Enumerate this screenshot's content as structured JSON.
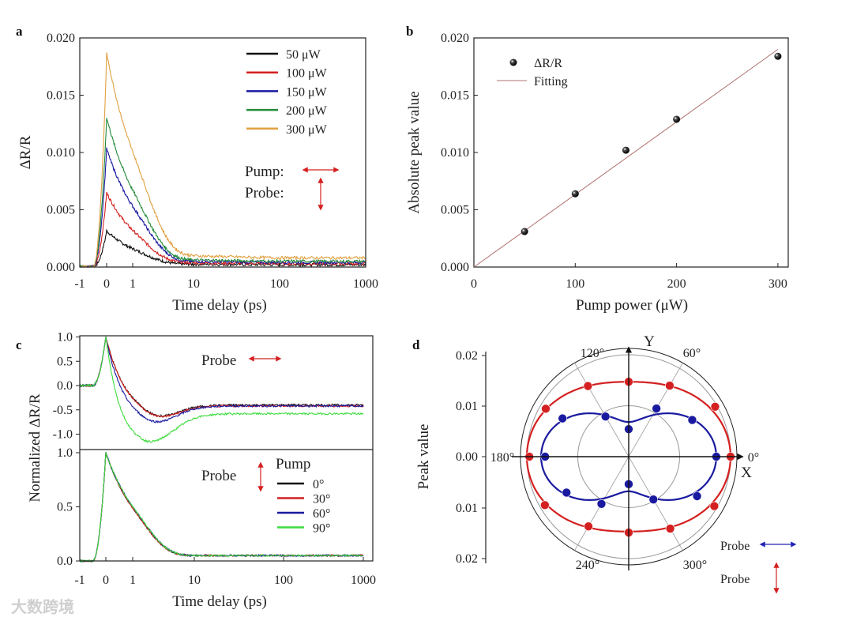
{
  "watermark": "大数跨境",
  "colors": {
    "black": "#111111",
    "red": "#d42020",
    "blue": "#1a1aa0",
    "green": "#228b3a",
    "orange": "#e0a040",
    "lime": "#3ddc3d",
    "arrow": "#d42020",
    "probe_blue": "#2323b8"
  },
  "chart_data": [
    {
      "panel": "a",
      "type": "line",
      "xlabel": "Time delay (ps)",
      "ylabel": "ΔR/R",
      "xscale": "linear -1..1, log 1..1000",
      "xticks": [
        "-1",
        "0",
        "1",
        "10",
        "100",
        "1000"
      ],
      "yticks": [
        "0.000",
        "0.005",
        "0.010",
        "0.015",
        "0.020"
      ],
      "ylim": [
        0,
        0.02
      ],
      "series": [
        {
          "name": "50 μW",
          "color": "#111111",
          "peak": 0.0031,
          "tail": 0.0002,
          "tau": 1.3
        },
        {
          "name": "100 μW",
          "color": "#d42020",
          "peak": 0.0064,
          "tail": 0.0003,
          "tau": 1.3
        },
        {
          "name": "150 μW",
          "color": "#1a1aa0",
          "peak": 0.0102,
          "tail": 0.0004,
          "tau": 1.4
        },
        {
          "name": "200 μW",
          "color": "#228b3a",
          "peak": 0.0129,
          "tail": 0.0005,
          "tau": 1.4
        },
        {
          "name": "300 μW",
          "color": "#e0a040",
          "peak": 0.0184,
          "tail": 0.0008,
          "tau": 1.5
        }
      ],
      "annotations": {
        "pump": "Pump:",
        "probe": "Probe:"
      }
    },
    {
      "panel": "b",
      "type": "scatter",
      "xlabel": "Pump power (μW)",
      "ylabel": "Absolute peak value",
      "xticks": [
        "0",
        "100",
        "200",
        "300"
      ],
      "yticks": [
        "0.000",
        "0.005",
        "0.010",
        "0.015",
        "0.020"
      ],
      "xlim": [
        0,
        310
      ],
      "ylim": [
        0,
        0.02
      ],
      "x": [
        50,
        100,
        150,
        200,
        300
      ],
      "values": [
        0.0031,
        0.0064,
        0.0102,
        0.0129,
        0.0184
      ],
      "fit": {
        "x": [
          0,
          300
        ],
        "y": [
          0,
          0.019
        ]
      },
      "legend": {
        "points": "ΔR/R",
        "line": "Fitting"
      }
    },
    {
      "panel": "c",
      "type": "line",
      "xlabel": "Time delay (ps)",
      "ylabel": "Normalized ΔR/R",
      "xticks": [
        "-1",
        "0",
        "1",
        "10",
        "100",
        "1000"
      ],
      "top": {
        "yticks": [
          "1.0",
          "0.5",
          "0.0",
          "-0.5",
          "-1.0"
        ],
        "ylim": [
          -1.2,
          1.0
        ],
        "annotation": "Probe",
        "series": [
          {
            "name": "0°",
            "color": "#111111",
            "c": -0.4,
            "b": 0.6,
            "tau1": 0.85,
            "tau2": 4
          },
          {
            "name": "30°",
            "color": "#d42020",
            "c": -0.42,
            "b": 0.58,
            "tau1": 0.85,
            "tau2": 4
          },
          {
            "name": "60°",
            "color": "#1a1aa0",
            "c": -0.42,
            "b": 0.75,
            "tau1": 0.75,
            "tau2": 4
          },
          {
            "name": "90°",
            "color": "#3ddc3d",
            "c": -0.58,
            "b": 1.1,
            "tau1": 0.6,
            "tau2": 4
          }
        ]
      },
      "bottom": {
        "yticks": [
          "1.0",
          "0.5",
          "0.0"
        ],
        "ylim": [
          0,
          1.0
        ],
        "annotation": "Probe",
        "legend_title": "Pump",
        "series": [
          {
            "name": "0°",
            "color": "#111111",
            "tau": 1.3,
            "tail": 0.05
          },
          {
            "name": "30°",
            "color": "#d42020",
            "tau": 1.3,
            "tail": 0.05
          },
          {
            "name": "60°",
            "color": "#1a1aa0",
            "tau": 1.35,
            "tail": 0.05
          },
          {
            "name": "90°",
            "color": "#3ddc3d",
            "tau": 1.35,
            "tail": 0.05
          }
        ]
      }
    },
    {
      "panel": "d",
      "type": "polar",
      "ylabel": "Peak value",
      "yticks": [
        "0.02",
        "0.01",
        "0.00",
        "0.01",
        "0.02"
      ],
      "angle_labels": {
        "a0": "0°",
        "a60": "60°",
        "a120": "120°",
        "a180": "180°",
        "a240": "240°",
        "a300": "300°"
      },
      "axis_labels": {
        "x": "X",
        "y": "Y"
      },
      "rlim": [
        0,
        0.02
      ],
      "angles": [
        0,
        30,
        60,
        90,
        120,
        150,
        180,
        210,
        240,
        270,
        300,
        330
      ],
      "series": [
        {
          "name": "Probe vertical",
          "color": "#d42020",
          "values": [
            0.02,
            0.0196,
            0.0161,
            0.0147,
            0.016,
            0.0188,
            0.0195,
            0.019,
            0.0158,
            0.0149,
            0.0163,
            0.0194
          ],
          "fit": {
            "A": 0.02,
            "B": 0.0147
          }
        },
        {
          "name": "Probe horizontal",
          "color": "#1a1aa0",
          "values": [
            0.0172,
            0.0144,
            0.0109,
            0.0054,
            0.0091,
            0.015,
            0.0164,
            0.0141,
            0.0107,
            0.0054,
            0.0097,
            0.0155
          ],
          "fit": {
            "A": 0.0172,
            "B": 0.0068
          }
        }
      ],
      "legend": {
        "probe_h": "Probe",
        "probe_v": "Probe"
      }
    }
  ]
}
